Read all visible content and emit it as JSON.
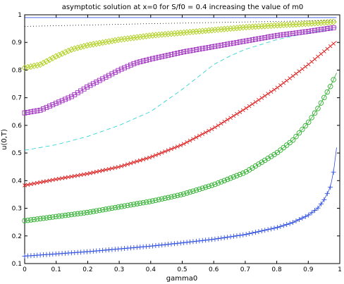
{
  "chart_data": {
    "type": "line",
    "title": "asymptotic solution at x=0 for S/f0 = 0.4 increasing the value of m0",
    "xlabel": "gamma0",
    "ylabel": "u(0,T)",
    "xlim": [
      0,
      1
    ],
    "ylim": [
      0.1,
      1
    ],
    "xticks": [
      "0",
      "0.1",
      "0.2",
      "0.3",
      "0.4",
      "0.5",
      "0.6",
      "0.7",
      "0.8",
      "0.9",
      "1"
    ],
    "yticks": [
      "0.1",
      "0.2",
      "0.3",
      "0.4",
      "0.5",
      "0.6",
      "0.7",
      "0.8",
      "0.9",
      "1"
    ],
    "grid": false,
    "legend": "none",
    "series": [
      {
        "color": "#3050e0",
        "marker": "plus",
        "dash": "solid",
        "x": [
          0,
          0.1,
          0.2,
          0.3,
          0.4,
          0.5,
          0.6,
          0.7,
          0.8,
          0.85,
          0.9,
          0.93,
          0.95,
          0.97,
          0.98,
          0.99
        ],
        "y": [
          0.127,
          0.135,
          0.143,
          0.153,
          0.163,
          0.175,
          0.188,
          0.205,
          0.23,
          0.248,
          0.275,
          0.3,
          0.33,
          0.375,
          0.43,
          0.52
        ]
      },
      {
        "color": "#30b030",
        "marker": "circle",
        "dash": "solid",
        "x": [
          0,
          0.1,
          0.2,
          0.3,
          0.4,
          0.5,
          0.6,
          0.7,
          0.75,
          0.8,
          0.85,
          0.9,
          0.93,
          0.95,
          0.97,
          0.99
        ],
        "y": [
          0.255,
          0.27,
          0.285,
          0.305,
          0.325,
          0.35,
          0.385,
          0.43,
          0.465,
          0.5,
          0.545,
          0.61,
          0.66,
          0.7,
          0.74,
          0.79
        ]
      },
      {
        "color": "#e02020",
        "marker": "x",
        "dash": "solid",
        "x": [
          0,
          0.1,
          0.2,
          0.3,
          0.4,
          0.5,
          0.6,
          0.7,
          0.8,
          0.9,
          0.99
        ],
        "y": [
          0.383,
          0.405,
          0.425,
          0.45,
          0.485,
          0.53,
          0.59,
          0.66,
          0.735,
          0.82,
          0.905
        ]
      },
      {
        "color": "#20d0d0",
        "marker": "none",
        "dash": "dashed",
        "x": [
          0,
          0.1,
          0.2,
          0.3,
          0.4,
          0.5,
          0.55,
          0.6,
          0.65,
          0.7,
          0.8,
          0.9,
          0.99
        ],
        "y": [
          0.51,
          0.53,
          0.56,
          0.6,
          0.65,
          0.73,
          0.775,
          0.82,
          0.85,
          0.875,
          0.91,
          0.935,
          0.95
        ]
      },
      {
        "color": "#a030c0",
        "marker": "square",
        "dash": "solid",
        "x": [
          0,
          0.05,
          0.1,
          0.15,
          0.2,
          0.25,
          0.3,
          0.35,
          0.4,
          0.5,
          0.6,
          0.7,
          0.8,
          0.9,
          0.99
        ],
        "y": [
          0.645,
          0.655,
          0.68,
          0.705,
          0.74,
          0.77,
          0.8,
          0.825,
          0.84,
          0.865,
          0.885,
          0.905,
          0.925,
          0.94,
          0.955
        ]
      },
      {
        "color": "#b0d020",
        "marker": "diamond",
        "dash": "solid",
        "x": [
          0,
          0.05,
          0.1,
          0.15,
          0.2,
          0.25,
          0.3,
          0.4,
          0.5,
          0.6,
          0.7,
          0.8,
          0.9,
          0.99
        ],
        "y": [
          0.808,
          0.82,
          0.85,
          0.875,
          0.89,
          0.9,
          0.91,
          0.925,
          0.935,
          0.945,
          0.955,
          0.962,
          0.968,
          0.975
        ]
      },
      {
        "color": "#000000",
        "marker": "none",
        "dash": "dotted",
        "x": [
          0,
          0.2,
          0.4,
          0.6,
          0.8,
          0.99
        ],
        "y": [
          0.958,
          0.963,
          0.968,
          0.972,
          0.976,
          0.98
        ]
      },
      {
        "color": "#3050e0",
        "marker": "none",
        "dash": "solid",
        "x": [
          0,
          0.5,
          0.99
        ],
        "y": [
          0.99,
          0.99,
          0.99
        ]
      }
    ]
  }
}
